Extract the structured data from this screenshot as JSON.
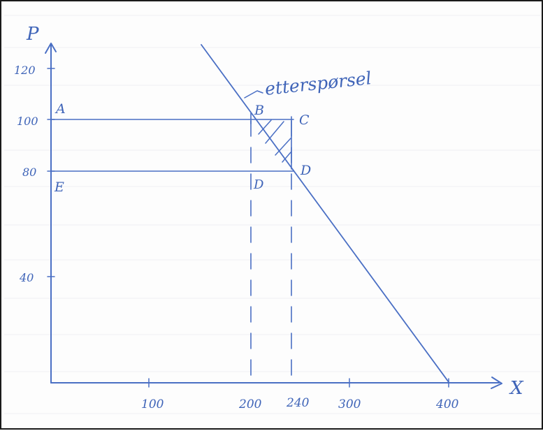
{
  "axes": {
    "y_label": "P",
    "x_label": "X",
    "y_ticks": [
      "120",
      "100",
      "80",
      "40"
    ],
    "x_ticks": [
      "100",
      "200",
      "240",
      "300",
      "400"
    ]
  },
  "points": {
    "A": "A",
    "B": "B",
    "C": "C",
    "D": "D",
    "E": "E",
    "F": "D"
  },
  "curve_label": "etterspørsel",
  "lines": {
    "demand": {
      "from": [
        150,
        125
      ],
      "to": [
        400,
        0
      ]
    },
    "price_high": 100,
    "price_low": 80,
    "quantity_1": 200,
    "quantity_2": 240
  },
  "colors": {
    "ink": "#4a6fc4",
    "paper": "#fdfdfd"
  }
}
